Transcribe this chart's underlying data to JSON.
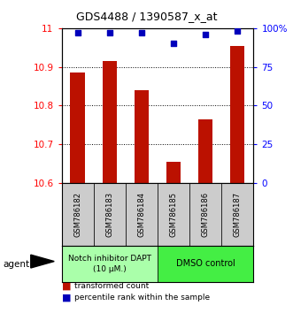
{
  "title": "GDS4488 / 1390587_x_at",
  "samples": [
    "GSM786182",
    "GSM786183",
    "GSM786184",
    "GSM786185",
    "GSM786186",
    "GSM786187"
  ],
  "bar_values": [
    10.885,
    10.915,
    10.84,
    10.655,
    10.765,
    10.955
  ],
  "percentile_values": [
    97,
    97,
    97,
    90,
    96,
    98
  ],
  "ylim_left": [
    10.6,
    11.0
  ],
  "ylim_right": [
    0,
    100
  ],
  "yticks_left": [
    10.6,
    10.7,
    10.8,
    10.9,
    11.0
  ],
  "ytick_labels_left": [
    "10.6",
    "10.7",
    "10.8",
    "10.9",
    "11"
  ],
  "yticks_right": [
    0,
    25,
    50,
    75,
    100
  ],
  "ytick_labels_right": [
    "0",
    "25",
    "50",
    "75",
    "100%"
  ],
  "bar_color": "#BB1100",
  "dot_color": "#0000BB",
  "group1_label": "Notch inhibitor DAPT\n(10 μM.)",
  "group2_label": "DMSO control",
  "group1_color": "#AAFFAA",
  "group2_color": "#44EE44",
  "group1_indices": [
    0,
    1,
    2
  ],
  "group2_indices": [
    3,
    4,
    5
  ],
  "agent_label": "agent",
  "legend_bar_label": "transformed count",
  "legend_dot_label": "percentile rank within the sample",
  "bar_width": 0.45,
  "baseline": 10.6
}
